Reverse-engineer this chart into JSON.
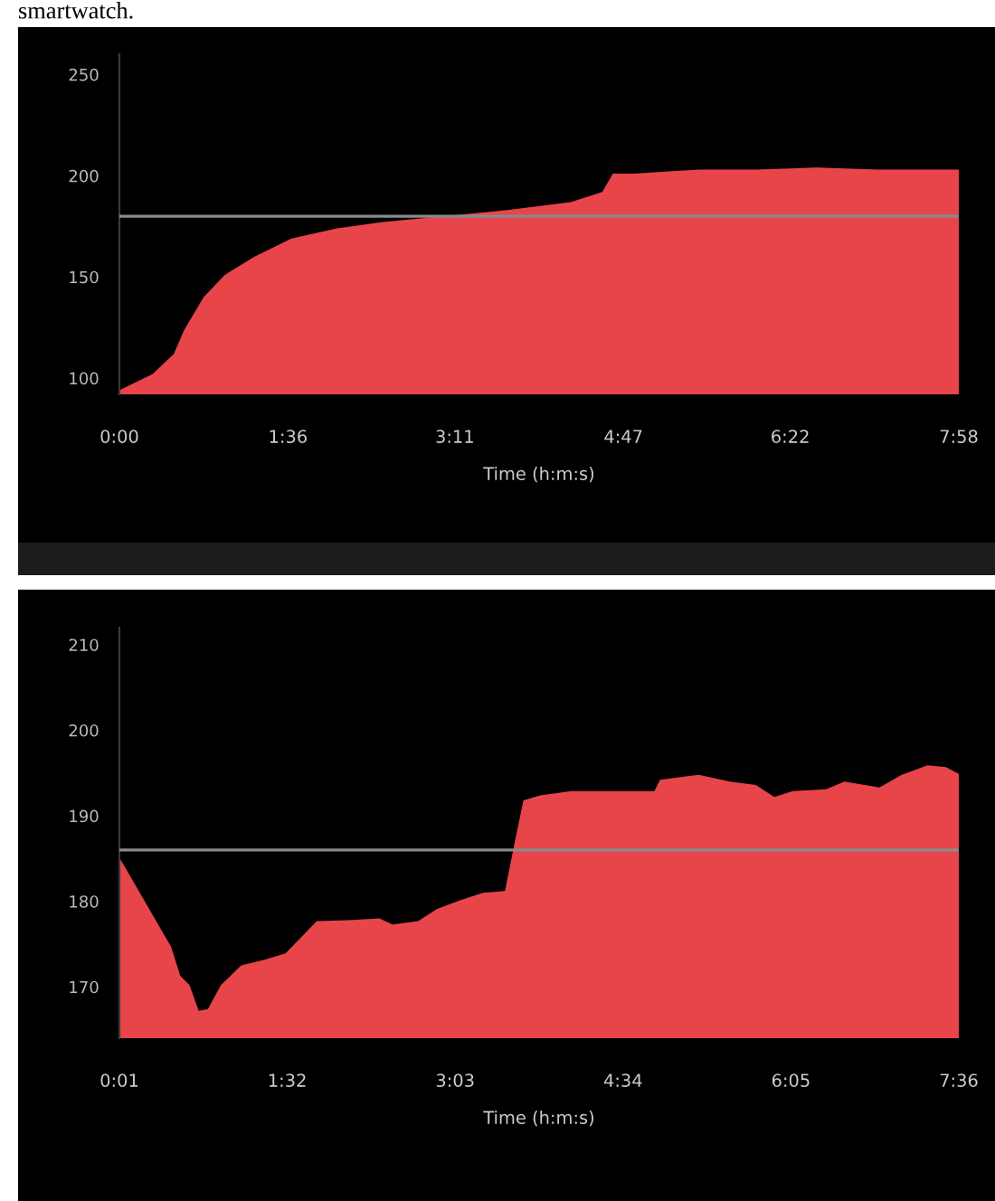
{
  "chart_data": [
    {
      "type": "area",
      "annotations": [
        "smartwatch."
      ],
      "xlabel": "Time (h:m:s)",
      "color": "#e8454a",
      "x": [
        0,
        19,
        31,
        37,
        48,
        60,
        77,
        98,
        124,
        149,
        185,
        221,
        257,
        275,
        281,
        293,
        311,
        330,
        363,
        397,
        432,
        478
      ],
      "values": [
        94,
        102,
        112,
        124,
        140,
        151,
        160,
        169,
        174,
        177,
        180,
        183,
        187,
        192,
        201,
        201,
        202,
        203,
        203,
        204,
        203,
        203
      ],
      "xlim": [
        0,
        478
      ],
      "ylim": [
        92,
        260
      ],
      "xticks": [
        {
          "value": 0,
          "label": "0:00"
        },
        {
          "value": 96,
          "label": "1:36"
        },
        {
          "value": 191,
          "label": "3:11"
        },
        {
          "value": 287,
          "label": "4:47"
        },
        {
          "value": 382,
          "label": "6:22"
        },
        {
          "value": 478,
          "label": "7:58"
        }
      ],
      "yticks": [
        100,
        150,
        200,
        250
      ],
      "ref_lines": [
        {
          "axis": "y",
          "value": 180,
          "color": "#8a8a8a"
        }
      ]
    },
    {
      "type": "area",
      "xlabel": "Time (h:m:s)",
      "color": "#e8454a",
      "x": [
        1,
        4,
        22,
        29,
        34,
        39,
        44,
        49,
        56,
        67,
        80,
        91,
        108,
        125,
        142,
        149,
        163,
        173,
        184,
        198,
        210,
        215,
        220,
        229,
        246,
        280,
        291,
        294,
        315,
        332,
        346,
        356,
        366,
        384,
        394,
        413,
        425,
        439,
        449,
        456
      ],
      "values": [
        185.1,
        184,
        177.3,
        174.7,
        171.3,
        170.2,
        167.2,
        167.4,
        170.2,
        172.5,
        173.2,
        173.9,
        177.7,
        177.8,
        178,
        177.3,
        177.7,
        179.1,
        180,
        181,
        181.2,
        186.6,
        191.8,
        192.4,
        192.9,
        192.9,
        192.9,
        194.2,
        194.8,
        194,
        193.6,
        192.2,
        192.9,
        193.1,
        194,
        193.3,
        194.8,
        195.9,
        195.7,
        194.9
      ],
      "xlim": [
        1,
        456
      ],
      "ylim": [
        164,
        212
      ],
      "xticks": [
        {
          "value": 1,
          "label": "0:01"
        },
        {
          "value": 92,
          "label": "1:32"
        },
        {
          "value": 183,
          "label": "3:03"
        },
        {
          "value": 274,
          "label": "4:34"
        },
        {
          "value": 365,
          "label": "6:05"
        },
        {
          "value": 456,
          "label": "7:36"
        }
      ],
      "yticks": [
        170,
        180,
        190,
        200,
        210
      ],
      "ref_lines": [
        {
          "axis": "y",
          "value": 186,
          "color": "#8a8a8a"
        }
      ]
    }
  ]
}
